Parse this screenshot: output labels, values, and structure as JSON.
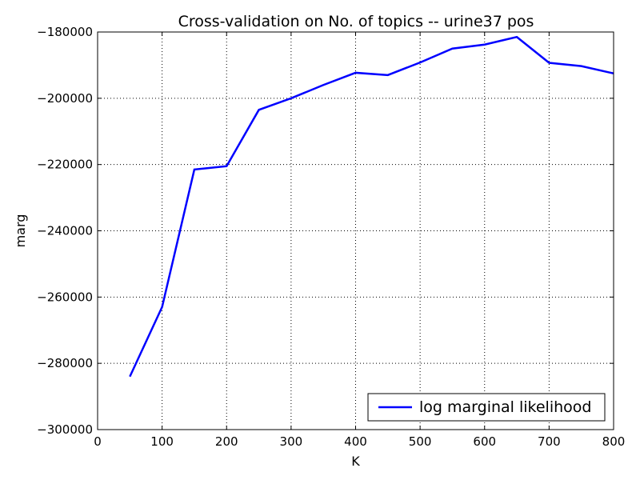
{
  "chart_data": {
    "type": "line",
    "title": "Cross-validation on No. of topics -- urine37 pos",
    "xlabel": "K",
    "ylabel": "marg",
    "xlim": [
      0,
      800
    ],
    "ylim": [
      -300000,
      -180000
    ],
    "xticks": [
      0,
      100,
      200,
      300,
      400,
      500,
      600,
      700,
      800
    ],
    "yticks": [
      -300000,
      -280000,
      -260000,
      -240000,
      -220000,
      -200000,
      -180000
    ],
    "xtick_labels": [
      "0",
      "100",
      "200",
      "300",
      "400",
      "500",
      "600",
      "700",
      "800"
    ],
    "ytick_labels": [
      "−300000",
      "−280000",
      "−260000",
      "−240000",
      "−220000",
      "−200000",
      "−180000"
    ],
    "grid": true,
    "legend_position": "lower-right",
    "series": [
      {
        "name": "log marginal likelihood",
        "color": "#0000ff",
        "x": [
          50,
          100,
          150,
          200,
          250,
          300,
          350,
          400,
          450,
          500,
          550,
          600,
          650,
          700,
          750,
          800
        ],
        "y": [
          -284000,
          -263000,
          -221500,
          -220500,
          -203500,
          -200000,
          -196000,
          -192300,
          -193000,
          -189200,
          -185000,
          -183800,
          -181500,
          -189300,
          -190300,
          -192500
        ]
      }
    ]
  }
}
